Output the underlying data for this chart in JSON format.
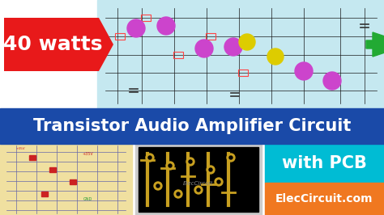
{
  "title": "Transistor Audio Amplifier Circuit",
  "title_bg": "#1a4aa8",
  "title_color": "#ffffff",
  "title_fontsize": 15,
  "badge_40w_text": "40 watts",
  "badge_40w_bg": "#e8191a",
  "badge_40w_color": "#ffffff",
  "circuit_bg": "#c5e8f0",
  "schematic_bg": "#f0e0a0",
  "with_pcb_bg": "#00bcd4",
  "with_pcb_text": "with PCB",
  "with_pcb_color": "#ffffff",
  "elec_bg": "#f07820",
  "elec_text": "ElecCircuit.com",
  "elec_color": "#ffffff",
  "main_bg": "#ffffff",
  "pcb_bg": "#000000",
  "pcb_border": "#cccccc"
}
